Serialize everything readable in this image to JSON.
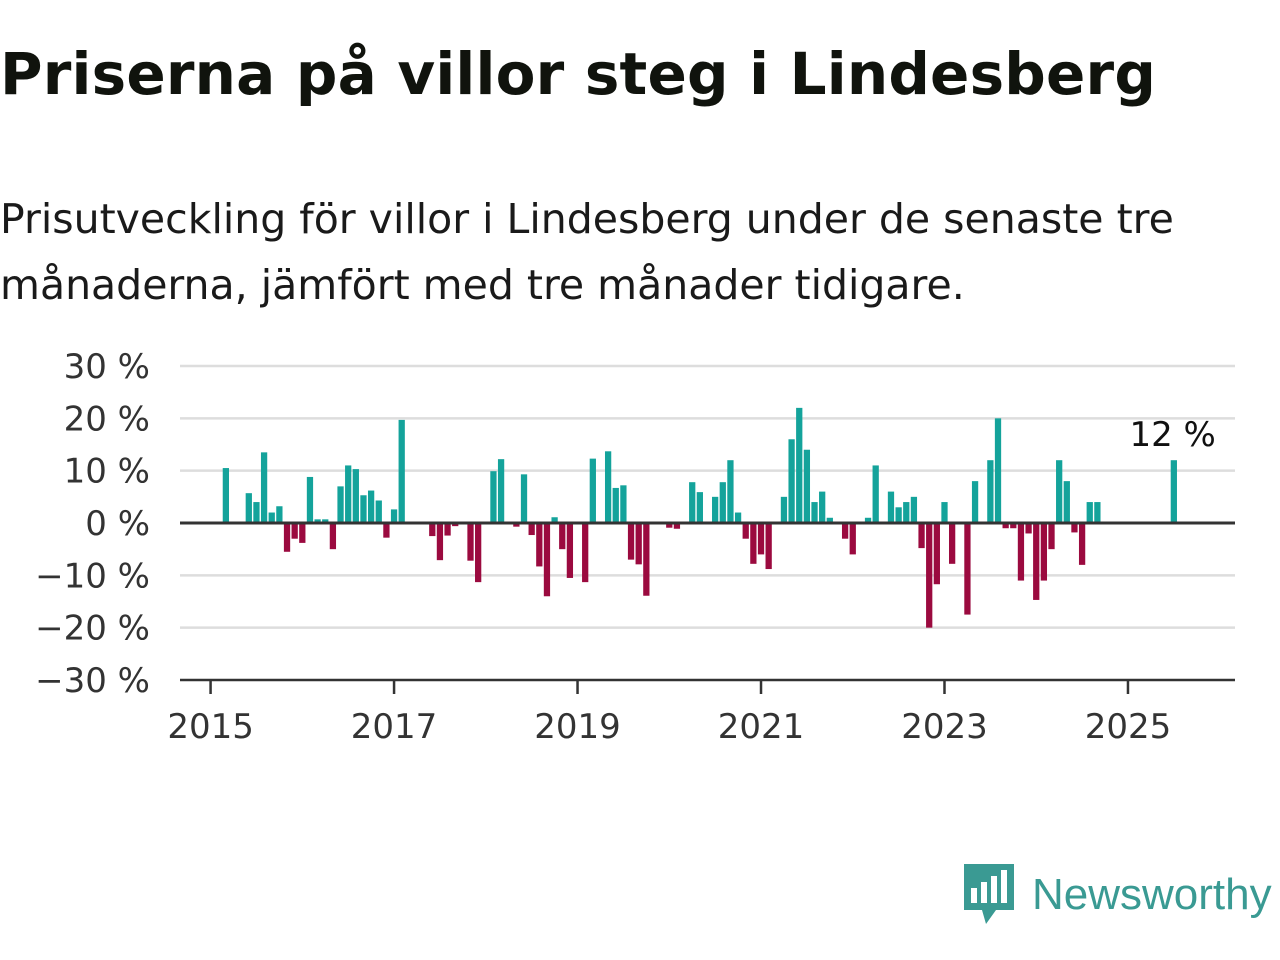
{
  "title": "Priserna på villor steg i Lindesberg",
  "subtitle": "Prisutveckling för villor i Lindesberg under de senaste tre månaderna, jämfört med tre månader tidigare.",
  "brand": {
    "name": "Newsworthy",
    "icon": "newsworthy-logo-icon",
    "color": "#3a9a93"
  },
  "colors": {
    "positive": "#14a39b",
    "negative": "#9b0a3f",
    "grid": "#dddddd",
    "axis": "#333333"
  },
  "chart_data": {
    "type": "bar",
    "title": "Priserna på villor steg i Lindesberg",
    "subtitle": "Prisutveckling för villor i Lindesberg under de senaste tre månaderna, jämfört med tre månader tidigare.",
    "xlabel": "",
    "ylabel": "",
    "ylim": [
      -30,
      30
    ],
    "yticks": [
      30,
      20,
      10,
      0,
      -10,
      -20,
      -30
    ],
    "ytick_labels": [
      "30 %",
      "20 %",
      "10 %",
      "0 %",
      "−10 %",
      "−20 %",
      "−30 %"
    ],
    "xticks": [
      "2015",
      "2017",
      "2019",
      "2021",
      "2023",
      "2025"
    ],
    "xlim": [
      "2014-09",
      "2026-03"
    ],
    "grid": true,
    "last_label": "12 %",
    "series": [
      {
        "x": [
          "2015-03",
          "2015-06",
          "2015-07",
          "2015-08",
          "2015-09",
          "2015-10",
          "2015-11",
          "2015-12",
          "2016-01",
          "2016-02",
          "2016-03",
          "2016-04",
          "2016-05",
          "2016-06",
          "2016-07",
          "2016-08",
          "2016-09",
          "2016-10",
          "2016-11",
          "2016-12",
          "2017-01",
          "2017-02",
          "2017-06",
          "2017-07",
          "2017-08",
          "2017-09",
          "2017-11",
          "2017-12",
          "2018-02",
          "2018-03",
          "2018-05",
          "2018-06",
          "2018-07",
          "2018-08",
          "2018-09",
          "2018-10",
          "2018-11",
          "2018-12",
          "2019-02",
          "2019-03",
          "2019-05",
          "2019-06",
          "2019-07",
          "2019-08",
          "2019-09",
          "2019-10",
          "2020-01",
          "2020-02",
          "2020-04",
          "2020-05",
          "2020-07",
          "2020-08",
          "2020-09",
          "2020-10",
          "2020-11",
          "2020-12",
          "2021-01",
          "2021-02",
          "2021-04",
          "2021-05",
          "2021-06",
          "2021-07",
          "2021-08",
          "2021-09",
          "2021-10",
          "2021-12",
          "2022-01",
          "2022-03",
          "2022-04",
          "2022-06",
          "2022-07",
          "2022-08",
          "2022-09",
          "2022-10",
          "2022-11",
          "2022-12",
          "2023-01",
          "2023-02",
          "2023-04",
          "2023-05",
          "2023-07",
          "2023-08",
          "2023-09",
          "2023-10",
          "2023-11",
          "2023-12",
          "2024-01",
          "2024-02",
          "2024-03",
          "2024-04",
          "2024-05",
          "2024-06",
          "2024-07",
          "2024-08",
          "2024-09",
          "2025-07"
        ],
        "values": [
          10.5,
          5.7,
          4,
          13.5,
          2,
          3.2,
          -5.5,
          -3,
          -3.8,
          8.8,
          0.7,
          0.7,
          -5,
          7,
          11,
          10.3,
          5.3,
          6.2,
          4.3,
          -2.8,
          2.6,
          19.7,
          -2.5,
          -7.1,
          -2.4,
          -0.6,
          -7.2,
          -11.3,
          9.9,
          12.2,
          -0.7,
          9.3,
          -2.3,
          -8.3,
          -14,
          1.1,
          -5,
          -10.5,
          -11.3,
          12.3,
          13.7,
          6.7,
          7.2,
          -7,
          -7.9,
          -13.9,
          -0.9,
          -1.1,
          7.8,
          5.9,
          5,
          7.8,
          12,
          2,
          -3,
          -7.8,
          -6,
          -8.8,
          5,
          16,
          22,
          14,
          4,
          6,
          1,
          -3,
          -6,
          1,
          11,
          6,
          3,
          4,
          5,
          -4.8,
          -20,
          -11.7,
          4,
          -7.8,
          -17.5,
          8,
          12,
          20,
          -1,
          -1,
          -11,
          -2,
          -14.7,
          -11,
          -5,
          12,
          8,
          -1.8,
          -8,
          4,
          4,
          12
        ]
      }
    ]
  }
}
